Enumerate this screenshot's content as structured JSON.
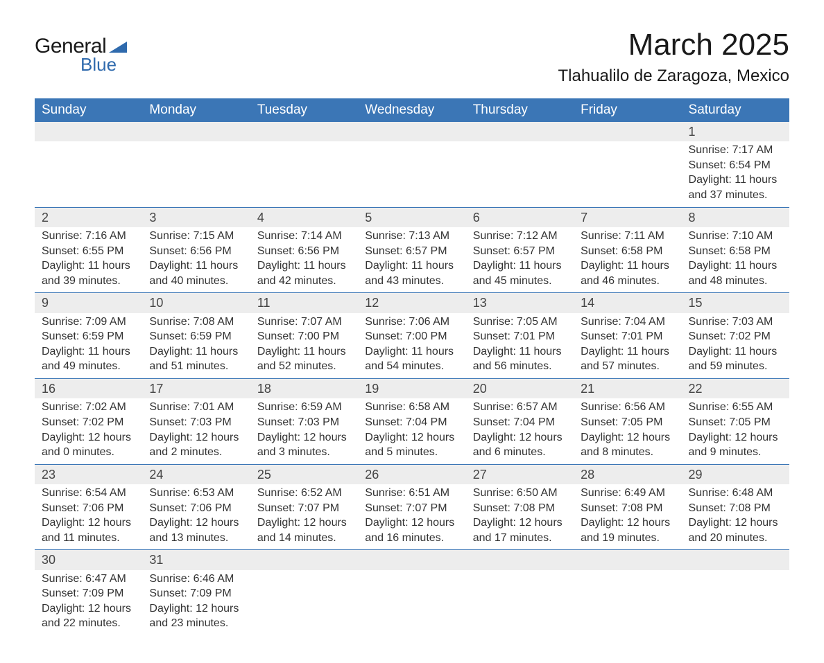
{
  "logo": {
    "word1": "General",
    "word2": "Blue",
    "triangle_color": "#2f6aad"
  },
  "title": "March 2025",
  "location": "Tlahualilo de Zaragoza, Mexico",
  "colors": {
    "header_bg": "#3b76b6",
    "header_text": "#ffffff",
    "daynum_bg": "#ededed",
    "border": "#3b76b6",
    "body_text": "#333333"
  },
  "layout": {
    "font_family": "Arial, Helvetica, sans-serif",
    "title_fontsize": 44,
    "location_fontsize": 24,
    "header_fontsize": 19,
    "cell_fontsize": 16
  },
  "weekdays": [
    "Sunday",
    "Monday",
    "Tuesday",
    "Wednesday",
    "Thursday",
    "Friday",
    "Saturday"
  ],
  "weeks": [
    [
      null,
      null,
      null,
      null,
      null,
      null,
      {
        "n": "1",
        "sunrise": "Sunrise: 7:17 AM",
        "sunset": "Sunset: 6:54 PM",
        "day1": "Daylight: 11 hours",
        "day2": "and 37 minutes."
      }
    ],
    [
      {
        "n": "2",
        "sunrise": "Sunrise: 7:16 AM",
        "sunset": "Sunset: 6:55 PM",
        "day1": "Daylight: 11 hours",
        "day2": "and 39 minutes."
      },
      {
        "n": "3",
        "sunrise": "Sunrise: 7:15 AM",
        "sunset": "Sunset: 6:56 PM",
        "day1": "Daylight: 11 hours",
        "day2": "and 40 minutes."
      },
      {
        "n": "4",
        "sunrise": "Sunrise: 7:14 AM",
        "sunset": "Sunset: 6:56 PM",
        "day1": "Daylight: 11 hours",
        "day2": "and 42 minutes."
      },
      {
        "n": "5",
        "sunrise": "Sunrise: 7:13 AM",
        "sunset": "Sunset: 6:57 PM",
        "day1": "Daylight: 11 hours",
        "day2": "and 43 minutes."
      },
      {
        "n": "6",
        "sunrise": "Sunrise: 7:12 AM",
        "sunset": "Sunset: 6:57 PM",
        "day1": "Daylight: 11 hours",
        "day2": "and 45 minutes."
      },
      {
        "n": "7",
        "sunrise": "Sunrise: 7:11 AM",
        "sunset": "Sunset: 6:58 PM",
        "day1": "Daylight: 11 hours",
        "day2": "and 46 minutes."
      },
      {
        "n": "8",
        "sunrise": "Sunrise: 7:10 AM",
        "sunset": "Sunset: 6:58 PM",
        "day1": "Daylight: 11 hours",
        "day2": "and 48 minutes."
      }
    ],
    [
      {
        "n": "9",
        "sunrise": "Sunrise: 7:09 AM",
        "sunset": "Sunset: 6:59 PM",
        "day1": "Daylight: 11 hours",
        "day2": "and 49 minutes."
      },
      {
        "n": "10",
        "sunrise": "Sunrise: 7:08 AM",
        "sunset": "Sunset: 6:59 PM",
        "day1": "Daylight: 11 hours",
        "day2": "and 51 minutes."
      },
      {
        "n": "11",
        "sunrise": "Sunrise: 7:07 AM",
        "sunset": "Sunset: 7:00 PM",
        "day1": "Daylight: 11 hours",
        "day2": "and 52 minutes."
      },
      {
        "n": "12",
        "sunrise": "Sunrise: 7:06 AM",
        "sunset": "Sunset: 7:00 PM",
        "day1": "Daylight: 11 hours",
        "day2": "and 54 minutes."
      },
      {
        "n": "13",
        "sunrise": "Sunrise: 7:05 AM",
        "sunset": "Sunset: 7:01 PM",
        "day1": "Daylight: 11 hours",
        "day2": "and 56 minutes."
      },
      {
        "n": "14",
        "sunrise": "Sunrise: 7:04 AM",
        "sunset": "Sunset: 7:01 PM",
        "day1": "Daylight: 11 hours",
        "day2": "and 57 minutes."
      },
      {
        "n": "15",
        "sunrise": "Sunrise: 7:03 AM",
        "sunset": "Sunset: 7:02 PM",
        "day1": "Daylight: 11 hours",
        "day2": "and 59 minutes."
      }
    ],
    [
      {
        "n": "16",
        "sunrise": "Sunrise: 7:02 AM",
        "sunset": "Sunset: 7:02 PM",
        "day1": "Daylight: 12 hours",
        "day2": "and 0 minutes."
      },
      {
        "n": "17",
        "sunrise": "Sunrise: 7:01 AM",
        "sunset": "Sunset: 7:03 PM",
        "day1": "Daylight: 12 hours",
        "day2": "and 2 minutes."
      },
      {
        "n": "18",
        "sunrise": "Sunrise: 6:59 AM",
        "sunset": "Sunset: 7:03 PM",
        "day1": "Daylight: 12 hours",
        "day2": "and 3 minutes."
      },
      {
        "n": "19",
        "sunrise": "Sunrise: 6:58 AM",
        "sunset": "Sunset: 7:04 PM",
        "day1": "Daylight: 12 hours",
        "day2": "and 5 minutes."
      },
      {
        "n": "20",
        "sunrise": "Sunrise: 6:57 AM",
        "sunset": "Sunset: 7:04 PM",
        "day1": "Daylight: 12 hours",
        "day2": "and 6 minutes."
      },
      {
        "n": "21",
        "sunrise": "Sunrise: 6:56 AM",
        "sunset": "Sunset: 7:05 PM",
        "day1": "Daylight: 12 hours",
        "day2": "and 8 minutes."
      },
      {
        "n": "22",
        "sunrise": "Sunrise: 6:55 AM",
        "sunset": "Sunset: 7:05 PM",
        "day1": "Daylight: 12 hours",
        "day2": "and 9 minutes."
      }
    ],
    [
      {
        "n": "23",
        "sunrise": "Sunrise: 6:54 AM",
        "sunset": "Sunset: 7:06 PM",
        "day1": "Daylight: 12 hours",
        "day2": "and 11 minutes."
      },
      {
        "n": "24",
        "sunrise": "Sunrise: 6:53 AM",
        "sunset": "Sunset: 7:06 PM",
        "day1": "Daylight: 12 hours",
        "day2": "and 13 minutes."
      },
      {
        "n": "25",
        "sunrise": "Sunrise: 6:52 AM",
        "sunset": "Sunset: 7:07 PM",
        "day1": "Daylight: 12 hours",
        "day2": "and 14 minutes."
      },
      {
        "n": "26",
        "sunrise": "Sunrise: 6:51 AM",
        "sunset": "Sunset: 7:07 PM",
        "day1": "Daylight: 12 hours",
        "day2": "and 16 minutes."
      },
      {
        "n": "27",
        "sunrise": "Sunrise: 6:50 AM",
        "sunset": "Sunset: 7:08 PM",
        "day1": "Daylight: 12 hours",
        "day2": "and 17 minutes."
      },
      {
        "n": "28",
        "sunrise": "Sunrise: 6:49 AM",
        "sunset": "Sunset: 7:08 PM",
        "day1": "Daylight: 12 hours",
        "day2": "and 19 minutes."
      },
      {
        "n": "29",
        "sunrise": "Sunrise: 6:48 AM",
        "sunset": "Sunset: 7:08 PM",
        "day1": "Daylight: 12 hours",
        "day2": "and 20 minutes."
      }
    ],
    [
      {
        "n": "30",
        "sunrise": "Sunrise: 6:47 AM",
        "sunset": "Sunset: 7:09 PM",
        "day1": "Daylight: 12 hours",
        "day2": "and 22 minutes."
      },
      {
        "n": "31",
        "sunrise": "Sunrise: 6:46 AM",
        "sunset": "Sunset: 7:09 PM",
        "day1": "Daylight: 12 hours",
        "day2": "and 23 minutes."
      },
      null,
      null,
      null,
      null,
      null
    ]
  ]
}
